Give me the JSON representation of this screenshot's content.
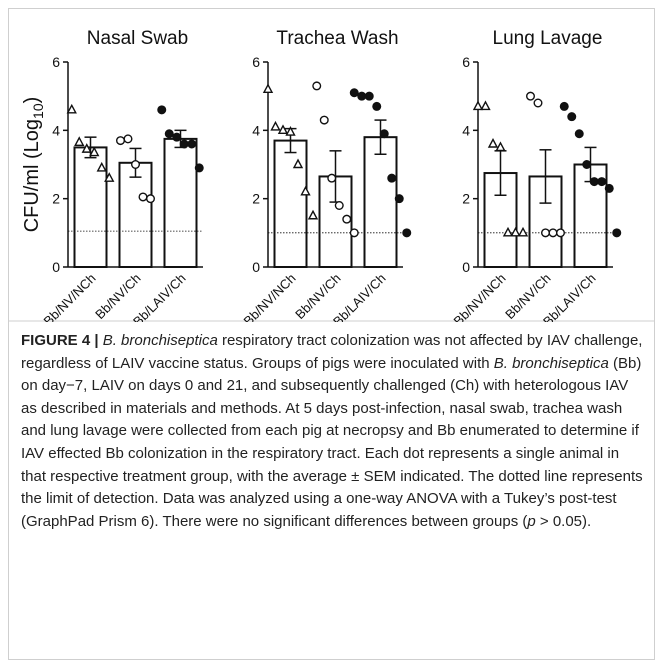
{
  "chart_data": [
    {
      "type": "bar_scatter",
      "title": "Nasal Swab",
      "ylabel": "CFU/ml (Log",
      "ylabel_sub": "10",
      "ylabel_end": ")",
      "categories": [
        "Bb/NV/NCh",
        "Bb/NV/Ch",
        "Bb/LAIV/Ch"
      ],
      "values": [
        3.5,
        3.05,
        3.75
      ],
      "errors": [
        0.3,
        0.42,
        0.25
      ],
      "points": [
        [
          4.6,
          3.65,
          3.45,
          3.35,
          2.9,
          2.6
        ],
        [
          3.7,
          3.75,
          3.0,
          2.05,
          2.0
        ],
        [
          4.6,
          3.9,
          3.8,
          3.6,
          3.6,
          2.9
        ]
      ],
      "markers": [
        "triangle",
        "circle",
        "dot"
      ],
      "lod": 1.05,
      "ylim": [
        0,
        6
      ],
      "yticks": [
        0,
        2,
        4,
        6
      ]
    },
    {
      "type": "bar_scatter",
      "title": "Trachea Wash",
      "categories": [
        "Bb/NV/NCh",
        "Bb/NV/Ch",
        "Bb/LAIV/Ch"
      ],
      "values": [
        3.7,
        2.65,
        3.8
      ],
      "errors": [
        0.35,
        0.75,
        0.5
      ],
      "points": [
        [
          5.2,
          4.1,
          4.0,
          3.95,
          3.0,
          2.2,
          1.5
        ],
        [
          5.3,
          4.3,
          2.6,
          1.8,
          1.4,
          1.0
        ],
        [
          5.1,
          5.0,
          5.0,
          4.7,
          3.9,
          2.6,
          2.0,
          1.0
        ]
      ],
      "markers": [
        "triangle",
        "circle",
        "dot"
      ],
      "lod": 1.0,
      "ylim": [
        0,
        6
      ],
      "yticks": [
        0,
        2,
        4,
        6
      ]
    },
    {
      "type": "bar_scatter",
      "title": "Lung Lavage",
      "categories": [
        "Bb/NV/NCh",
        "Bb/NV/Ch",
        "Bb/LAIV/Ch"
      ],
      "values": [
        2.75,
        2.65,
        3.0
      ],
      "errors": [
        0.65,
        0.78,
        0.5
      ],
      "points": [
        [
          4.7,
          4.7,
          3.6,
          3.5,
          1.0,
          1.0,
          1.0
        ],
        [
          5.0,
          4.8,
          1.0,
          1.0,
          1.0
        ],
        [
          4.7,
          4.4,
          3.9,
          3.0,
          2.5,
          2.5,
          2.3,
          1.0
        ]
      ],
      "markers": [
        "triangle",
        "circle",
        "dot"
      ],
      "lod": 1.0,
      "ylim": [
        0,
        6
      ],
      "yticks": [
        0,
        2,
        4,
        6
      ]
    }
  ],
  "caption": [
    {
      "text": "FIGURE 4 |",
      "style": "bold"
    },
    {
      "text": " ",
      "style": "normal"
    },
    {
      "text": "B. bronchiseptica",
      "style": "italic"
    },
    {
      "text": " respiratory tract colonization was not affected by IAV challenge, regardless of LAIV vaccine status. Groups of pigs were inoculated with ",
      "style": "normal"
    },
    {
      "text": "B. bronchiseptica",
      "style": "italic"
    },
    {
      "text": " (Bb) on day−7, LAIV on days 0 and 21, and subsequently challenged (Ch) with heterologous IAV as described in materials and methods. At 5 days post-infection, nasal swab, trachea wash and lung lavage were collected from each pig at necropsy and Bb enumerated to determine if IAV effected Bb colonization in the respiratory tract. Each dot represents a single animal in that respective treatment group, with the average ± SEM indicated. The dotted line represents the limit of detection. Data was analyzed using a one-way ANOVA with a Tukey’s post-test (GraphPad Prism 6). There were no significant differences between groups (",
      "style": "normal"
    },
    {
      "text": "p",
      "style": "italic"
    },
    {
      "text": " > 0.05).",
      "style": "normal"
    }
  ]
}
